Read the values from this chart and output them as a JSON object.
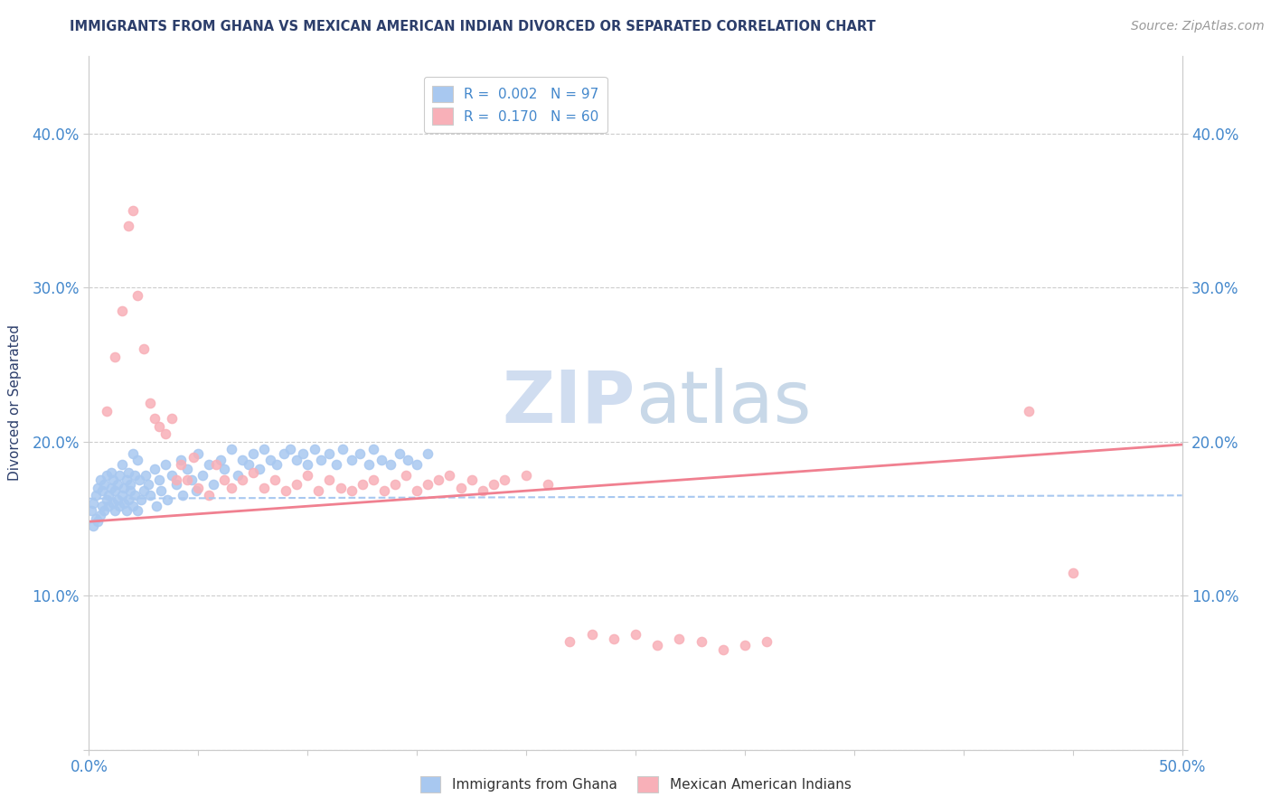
{
  "title": "IMMIGRANTS FROM GHANA VS MEXICAN AMERICAN INDIAN DIVORCED OR SEPARATED CORRELATION CHART",
  "source": "Source: ZipAtlas.com",
  "ylabel": "Divorced or Separated",
  "xlim": [
    0.0,
    0.5
  ],
  "ylim": [
    0.0,
    0.45
  ],
  "xticks": [
    0.0,
    0.05,
    0.1,
    0.15,
    0.2,
    0.25,
    0.3,
    0.35,
    0.4,
    0.45,
    0.5
  ],
  "yticks": [
    0.0,
    0.1,
    0.2,
    0.3,
    0.4
  ],
  "ytick_labels": [
    "",
    "10.0%",
    "20.0%",
    "30.0%",
    "40.0%"
  ],
  "xtick_labels": [
    "0.0%",
    "",
    "",
    "",
    "",
    "",
    "",
    "",
    "",
    "",
    "50.0%"
  ],
  "right_ytick_labels": [
    "",
    "10.0%",
    "20.0%",
    "30.0%",
    "40.0%"
  ],
  "watermark": "ZIPatlas",
  "legend_r1": "R =  0.002",
  "legend_n1": "N = 97",
  "legend_r2": "R =  0.170",
  "legend_n2": "N = 60",
  "color_ghana": "#a8c8f0",
  "color_mexican": "#f8b0b8",
  "color_text_blue": "#4488cc",
  "line_color_ghana": "#a8c8f0",
  "line_color_mexican": "#f08090",
  "ghana_scatter_x": [
    0.001,
    0.002,
    0.002,
    0.003,
    0.003,
    0.004,
    0.004,
    0.005,
    0.005,
    0.006,
    0.006,
    0.007,
    0.007,
    0.008,
    0.008,
    0.009,
    0.009,
    0.01,
    0.01,
    0.011,
    0.011,
    0.012,
    0.012,
    0.013,
    0.013,
    0.014,
    0.014,
    0.015,
    0.015,
    0.016,
    0.016,
    0.017,
    0.017,
    0.018,
    0.018,
    0.019,
    0.019,
    0.02,
    0.02,
    0.021,
    0.021,
    0.022,
    0.022,
    0.023,
    0.024,
    0.025,
    0.026,
    0.027,
    0.028,
    0.03,
    0.031,
    0.032,
    0.033,
    0.035,
    0.036,
    0.038,
    0.04,
    0.042,
    0.043,
    0.045,
    0.047,
    0.049,
    0.05,
    0.052,
    0.055,
    0.057,
    0.06,
    0.062,
    0.065,
    0.068,
    0.07,
    0.073,
    0.075,
    0.078,
    0.08,
    0.083,
    0.086,
    0.089,
    0.092,
    0.095,
    0.098,
    0.1,
    0.103,
    0.106,
    0.11,
    0.113,
    0.116,
    0.12,
    0.124,
    0.128,
    0.13,
    0.134,
    0.138,
    0.142,
    0.146,
    0.15,
    0.155
  ],
  "ghana_scatter_y": [
    0.155,
    0.16,
    0.145,
    0.165,
    0.15,
    0.17,
    0.148,
    0.175,
    0.152,
    0.168,
    0.158,
    0.172,
    0.155,
    0.162,
    0.178,
    0.158,
    0.165,
    0.17,
    0.18,
    0.16,
    0.175,
    0.168,
    0.155,
    0.172,
    0.162,
    0.178,
    0.158,
    0.185,
    0.165,
    0.16,
    0.17,
    0.175,
    0.155,
    0.18,
    0.162,
    0.168,
    0.172,
    0.192,
    0.158,
    0.178,
    0.165,
    0.188,
    0.155,
    0.175,
    0.162,
    0.168,
    0.178,
    0.172,
    0.165,
    0.182,
    0.158,
    0.175,
    0.168,
    0.185,
    0.162,
    0.178,
    0.172,
    0.188,
    0.165,
    0.182,
    0.175,
    0.168,
    0.192,
    0.178,
    0.185,
    0.172,
    0.188,
    0.182,
    0.195,
    0.178,
    0.188,
    0.185,
    0.192,
    0.182,
    0.195,
    0.188,
    0.185,
    0.192,
    0.195,
    0.188,
    0.192,
    0.185,
    0.195,
    0.188,
    0.192,
    0.185,
    0.195,
    0.188,
    0.192,
    0.185,
    0.195,
    0.188,
    0.185,
    0.192,
    0.188,
    0.185,
    0.192
  ],
  "mexican_scatter_x": [
    0.008,
    0.012,
    0.015,
    0.018,
    0.02,
    0.022,
    0.025,
    0.028,
    0.03,
    0.032,
    0.035,
    0.038,
    0.04,
    0.042,
    0.045,
    0.048,
    0.05,
    0.055,
    0.058,
    0.062,
    0.065,
    0.07,
    0.075,
    0.08,
    0.085,
    0.09,
    0.095,
    0.1,
    0.105,
    0.11,
    0.115,
    0.12,
    0.125,
    0.13,
    0.135,
    0.14,
    0.145,
    0.15,
    0.155,
    0.16,
    0.165,
    0.17,
    0.175,
    0.18,
    0.185,
    0.19,
    0.2,
    0.21,
    0.22,
    0.23,
    0.24,
    0.25,
    0.26,
    0.27,
    0.28,
    0.29,
    0.3,
    0.31,
    0.43,
    0.45
  ],
  "mexican_scatter_y": [
    0.22,
    0.255,
    0.285,
    0.34,
    0.35,
    0.295,
    0.26,
    0.225,
    0.215,
    0.21,
    0.205,
    0.215,
    0.175,
    0.185,
    0.175,
    0.19,
    0.17,
    0.165,
    0.185,
    0.175,
    0.17,
    0.175,
    0.18,
    0.17,
    0.175,
    0.168,
    0.172,
    0.178,
    0.168,
    0.175,
    0.17,
    0.168,
    0.172,
    0.175,
    0.168,
    0.172,
    0.178,
    0.168,
    0.172,
    0.175,
    0.178,
    0.17,
    0.175,
    0.168,
    0.172,
    0.175,
    0.178,
    0.172,
    0.07,
    0.075,
    0.072,
    0.075,
    0.068,
    0.072,
    0.07,
    0.065,
    0.068,
    0.07,
    0.22,
    0.115
  ],
  "ghana_trend_x": [
    0.0,
    0.5
  ],
  "ghana_trend_y": [
    0.163,
    0.165
  ],
  "mexican_trend_x": [
    0.0,
    0.5
  ],
  "mexican_trend_y": [
    0.148,
    0.198
  ],
  "background_color": "#ffffff",
  "grid_color": "#cccccc",
  "title_color": "#2c3e6b",
  "watermark_color": "#d0ddf0",
  "source_color": "#999999"
}
